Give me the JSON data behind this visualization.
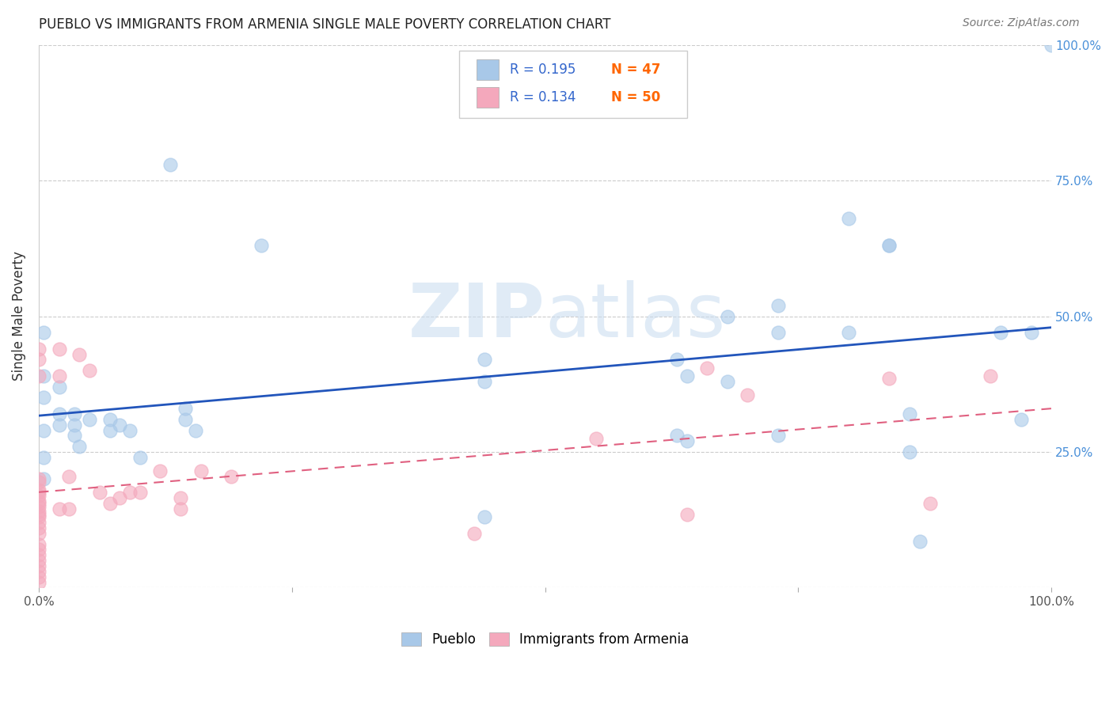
{
  "title": "PUEBLO VS IMMIGRANTS FROM ARMENIA SINGLE MALE POVERTY CORRELATION CHART",
  "source": "Source: ZipAtlas.com",
  "ylabel": "Single Male Poverty",
  "xlim": [
    0,
    1
  ],
  "ylim": [
    0,
    1
  ],
  "legend_r1": "R = 0.195",
  "legend_n1": "N = 47",
  "legend_r2": "R = 0.134",
  "legend_n2": "N = 50",
  "pueblo_color": "#A8C8E8",
  "armenia_color": "#F4A8BC",
  "pueblo_line_color": "#2255BB",
  "armenia_line_color": "#E06080",
  "watermark_zip": "ZIP",
  "watermark_atlas": "atlas",
  "background_color": "#ffffff",
  "pueblo_x": [
    0.005,
    0.005,
    0.005,
    0.005,
    0.005,
    0.005,
    0.02,
    0.02,
    0.02,
    0.035,
    0.035,
    0.035,
    0.04,
    0.05,
    0.07,
    0.07,
    0.08,
    0.09,
    0.1,
    0.13,
    0.145,
    0.145,
    0.155,
    0.22,
    0.44,
    0.44,
    0.44,
    0.63,
    0.63,
    0.64,
    0.64,
    0.68,
    0.68,
    0.73,
    0.73,
    0.73,
    0.8,
    0.8,
    0.84,
    0.84,
    0.86,
    0.86,
    0.87,
    0.95,
    0.97,
    0.98,
    1.0
  ],
  "pueblo_y": [
    0.47,
    0.39,
    0.35,
    0.29,
    0.24,
    0.2,
    0.37,
    0.32,
    0.3,
    0.32,
    0.3,
    0.28,
    0.26,
    0.31,
    0.31,
    0.29,
    0.3,
    0.29,
    0.24,
    0.78,
    0.33,
    0.31,
    0.29,
    0.63,
    0.42,
    0.38,
    0.13,
    0.42,
    0.28,
    0.39,
    0.27,
    0.5,
    0.38,
    0.52,
    0.47,
    0.28,
    0.68,
    0.47,
    0.63,
    0.63,
    0.32,
    0.25,
    0.085,
    0.47,
    0.31,
    0.47,
    1.0
  ],
  "armenia_x": [
    0.0,
    0.0,
    0.0,
    0.0,
    0.0,
    0.0,
    0.0,
    0.0,
    0.0,
    0.0,
    0.0,
    0.0,
    0.0,
    0.0,
    0.0,
    0.0,
    0.0,
    0.0,
    0.0,
    0.0,
    0.0,
    0.0,
    0.0,
    0.0,
    0.0,
    0.02,
    0.02,
    0.02,
    0.03,
    0.03,
    0.04,
    0.05,
    0.06,
    0.07,
    0.08,
    0.09,
    0.1,
    0.12,
    0.14,
    0.14,
    0.16,
    0.19,
    0.43,
    0.55,
    0.64,
    0.66,
    0.7,
    0.84,
    0.88,
    0.94
  ],
  "armenia_y": [
    0.44,
    0.42,
    0.39,
    0.2,
    0.18,
    0.17,
    0.16,
    0.15,
    0.14,
    0.13,
    0.12,
    0.11,
    0.1,
    0.08,
    0.07,
    0.06,
    0.05,
    0.04,
    0.03,
    0.02,
    0.01,
    0.195,
    0.175,
    0.155,
    0.135,
    0.44,
    0.39,
    0.145,
    0.205,
    0.145,
    0.43,
    0.4,
    0.175,
    0.155,
    0.165,
    0.175,
    0.175,
    0.215,
    0.165,
    0.145,
    0.215,
    0.205,
    0.1,
    0.275,
    0.135,
    0.405,
    0.355,
    0.385,
    0.155,
    0.39
  ]
}
